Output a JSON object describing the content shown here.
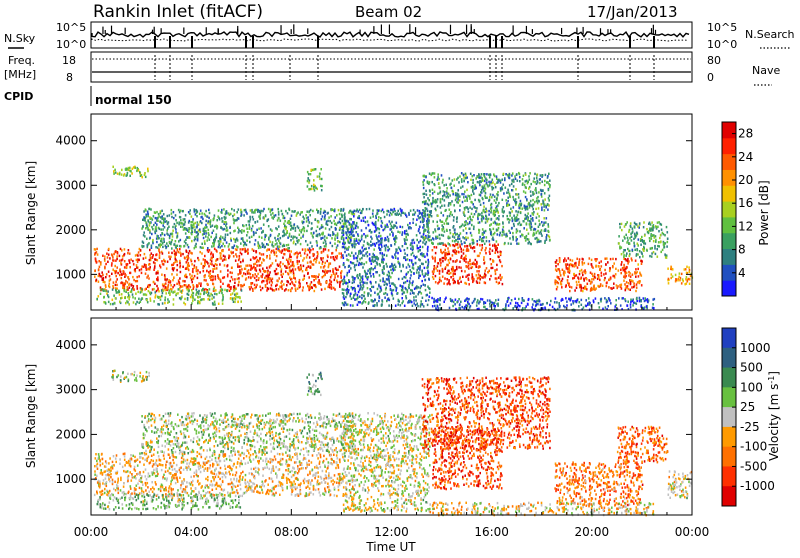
{
  "header": {
    "station": "Rankin Inlet (fitACF)",
    "beam": "Beam 02",
    "date": "17/Jan/2013"
  },
  "top_panels": {
    "nsky_label": "N.Sky",
    "nsky_tick_high": "10^5",
    "nsky_tick_low": "10^0",
    "nsearch_label": "N.Search",
    "nsearch_tick_high": "10^5",
    "nsearch_tick_low": "10^0",
    "freq_label_1": "Freq.",
    "freq_label_2": "[MHz]",
    "freq_tick_high": "18",
    "freq_tick_low": "8",
    "nave_label": "Nave",
    "nave_tick_high": "80",
    "nave_tick_low": "0",
    "cpid_label": "CPID",
    "cpid_value": "normal 150"
  },
  "chart_data": [
    {
      "type": "heatmap",
      "title": "",
      "xlabel": "Time UT",
      "ylabel": "Slant Range [km]",
      "colorbar_label": "Power [dB]",
      "x_ticks": [
        "00:00",
        "04:00",
        "08:00",
        "12:00",
        "16:00",
        "20:00",
        "00:00"
      ],
      "xlim_hours": [
        0,
        24
      ],
      "ylim": [
        200,
        4600
      ],
      "y_ticks": [
        1000,
        2000,
        3000,
        4000
      ],
      "colorbar_ticks": [
        4,
        8,
        12,
        16,
        20,
        24,
        28
      ],
      "colorbar_range": [
        0,
        30
      ],
      "colorbar_colors": [
        "#1a1aff",
        "#2050c0",
        "#2e8080",
        "#3aa060",
        "#60c040",
        "#a8d020",
        "#f0c000",
        "#ff9000",
        "#ff5a00",
        "#ff2000",
        "#e00000"
      ],
      "regions": [
        {
          "t0": 0.1,
          "t1": 10.0,
          "r0": 650,
          "r1": 1600,
          "level": 0.82
        },
        {
          "t0": 0.2,
          "t1": 6.0,
          "r0": 350,
          "r1": 700,
          "level": 0.4
        },
        {
          "t0": 2.0,
          "t1": 10.5,
          "r0": 1600,
          "r1": 2500,
          "level": 0.3
        },
        {
          "t0": 0.8,
          "t1": 2.3,
          "r0": 3200,
          "r1": 3450,
          "level": 0.45
        },
        {
          "t0": 8.6,
          "t1": 9.2,
          "r0": 2900,
          "r1": 3400,
          "level": 0.4
        },
        {
          "t0": 10.0,
          "t1": 13.5,
          "r0": 300,
          "r1": 2500,
          "level": 0.2
        },
        {
          "t0": 13.6,
          "t1": 16.4,
          "r0": 800,
          "r1": 1700,
          "level": 0.85
        },
        {
          "t0": 13.2,
          "t1": 18.3,
          "r0": 1700,
          "r1": 3300,
          "level": 0.3
        },
        {
          "t0": 18.5,
          "t1": 22.0,
          "r0": 650,
          "r1": 1400,
          "level": 0.8
        },
        {
          "t0": 21.0,
          "t1": 23.0,
          "r0": 1400,
          "r1": 2200,
          "level": 0.35
        },
        {
          "t0": 23.0,
          "t1": 24.0,
          "r0": 800,
          "r1": 1200,
          "level": 0.65
        },
        {
          "t0": 13.5,
          "t1": 22.5,
          "r0": 220,
          "r1": 500,
          "level": 0.15
        }
      ]
    },
    {
      "type": "heatmap",
      "title": "",
      "xlabel": "Time UT",
      "ylabel": "Slant Range [km]",
      "colorbar_label": "Velocity [m s^-1]",
      "x_ticks": [
        "00:00",
        "04:00",
        "08:00",
        "12:00",
        "16:00",
        "20:00",
        "00:00"
      ],
      "xlim_hours": [
        0,
        24
      ],
      "ylim": [
        200,
        4600
      ],
      "y_ticks": [
        1000,
        2000,
        3000,
        4000
      ],
      "colorbar_ticks": [
        "1000",
        "500",
        "100",
        "25",
        "-25",
        "-100",
        "-500",
        "-1000"
      ],
      "colorbar_colors": [
        "#2040c0",
        "#2e6080",
        "#3a8a50",
        "#68c040",
        "#c0c0c0",
        "#ff9a00",
        "#ff7000",
        "#ff3000",
        "#e00000"
      ],
      "regions": [
        {
          "t0": 0.1,
          "t1": 10.0,
          "r0": 650,
          "r1": 1600,
          "level": 0.58
        },
        {
          "t0": 0.2,
          "t1": 6.0,
          "r0": 350,
          "r1": 700,
          "level": 0.4
        },
        {
          "t0": 2.0,
          "t1": 10.5,
          "r0": 1600,
          "r1": 2500,
          "level": 0.45
        },
        {
          "t0": 0.8,
          "t1": 2.3,
          "r0": 3200,
          "r1": 3450,
          "level": 0.45
        },
        {
          "t0": 8.6,
          "t1": 9.2,
          "r0": 2900,
          "r1": 3400,
          "level": 0.35
        },
        {
          "t0": 10.0,
          "t1": 13.5,
          "r0": 300,
          "r1": 2500,
          "level": 0.5
        },
        {
          "t0": 13.6,
          "t1": 16.4,
          "r0": 800,
          "r1": 2200,
          "level": 0.82
        },
        {
          "t0": 13.2,
          "t1": 18.3,
          "r0": 1700,
          "r1": 3300,
          "level": 0.8
        },
        {
          "t0": 18.5,
          "t1": 22.0,
          "r0": 450,
          "r1": 1400,
          "level": 0.72
        },
        {
          "t0": 21.0,
          "t1": 23.0,
          "r0": 1400,
          "r1": 2200,
          "level": 0.75
        },
        {
          "t0": 23.0,
          "t1": 24.0,
          "r0": 600,
          "r1": 1200,
          "level": 0.5
        },
        {
          "t0": 13.5,
          "t1": 22.5,
          "r0": 220,
          "r1": 500,
          "level": 0.55
        }
      ]
    }
  ]
}
